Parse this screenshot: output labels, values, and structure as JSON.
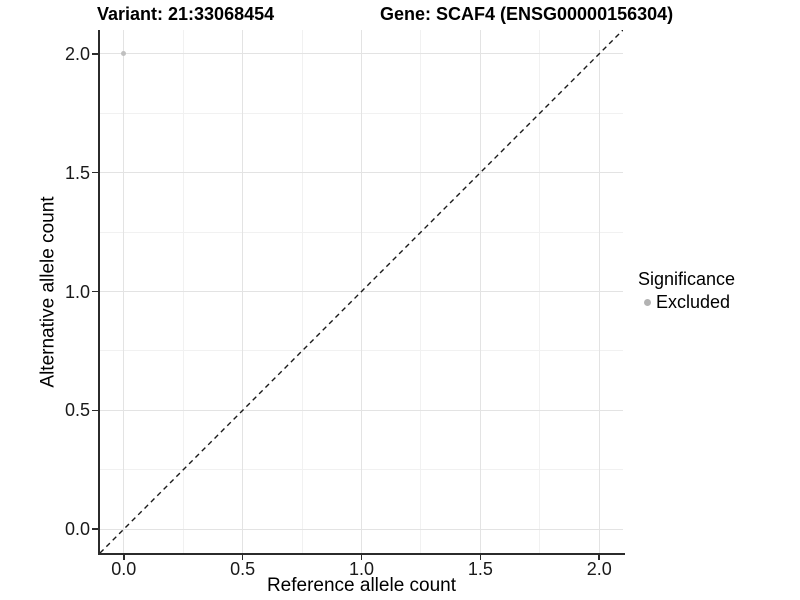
{
  "header": {
    "variant_title": "Variant: 21:33068454",
    "gene_title": "Gene: SCAF4 (ENSG00000156304)"
  },
  "chart_data": {
    "type": "scatter",
    "title_left": "Variant: 21:33068454",
    "title_right": "Gene: SCAF4 (ENSG00000156304)",
    "xlabel": "Reference allele count",
    "ylabel": "Alternative allele count",
    "xlim": [
      -0.1,
      2.1
    ],
    "ylim": [
      -0.1,
      2.1
    ],
    "x_major_ticks": [
      {
        "value": 0.0,
        "label": "0.0"
      },
      {
        "value": 0.5,
        "label": "0.5"
      },
      {
        "value": 1.0,
        "label": "1.0"
      },
      {
        "value": 1.5,
        "label": "1.5"
      },
      {
        "value": 2.0,
        "label": "2.0"
      }
    ],
    "y_major_ticks": [
      {
        "value": 0.0,
        "label": "0.0"
      },
      {
        "value": 0.5,
        "label": "0.5"
      },
      {
        "value": 1.0,
        "label": "1.0"
      },
      {
        "value": 1.5,
        "label": "1.5"
      },
      {
        "value": 2.0,
        "label": "2.0"
      }
    ],
    "x_minor_ticks": [
      0.25,
      0.75,
      1.25,
      1.75
    ],
    "y_minor_ticks": [
      0.25,
      0.75,
      1.25,
      1.75
    ],
    "grid": {
      "show": true,
      "major_color": "#e3e3e3",
      "minor_color": "#f1f1f1",
      "legend_position": "right"
    },
    "reference_line": {
      "kind": "identity",
      "style": "dashed",
      "color": "#1a1a1a"
    },
    "series": [
      {
        "name": "Excluded",
        "color": "#c0c0c0",
        "points": [
          {
            "x": 0.0,
            "y": 2.0
          }
        ]
      }
    ],
    "legend": {
      "title": "Significance",
      "entries": [
        {
          "label": "Excluded",
          "color": "#b3b3b3",
          "marker": "circle"
        }
      ]
    }
  },
  "colors": {
    "axis_line": "#2b2b2b",
    "tick_label": "#1a1a1a",
    "point": "#c0c0c0",
    "legend_key": "#b3b3b3"
  }
}
